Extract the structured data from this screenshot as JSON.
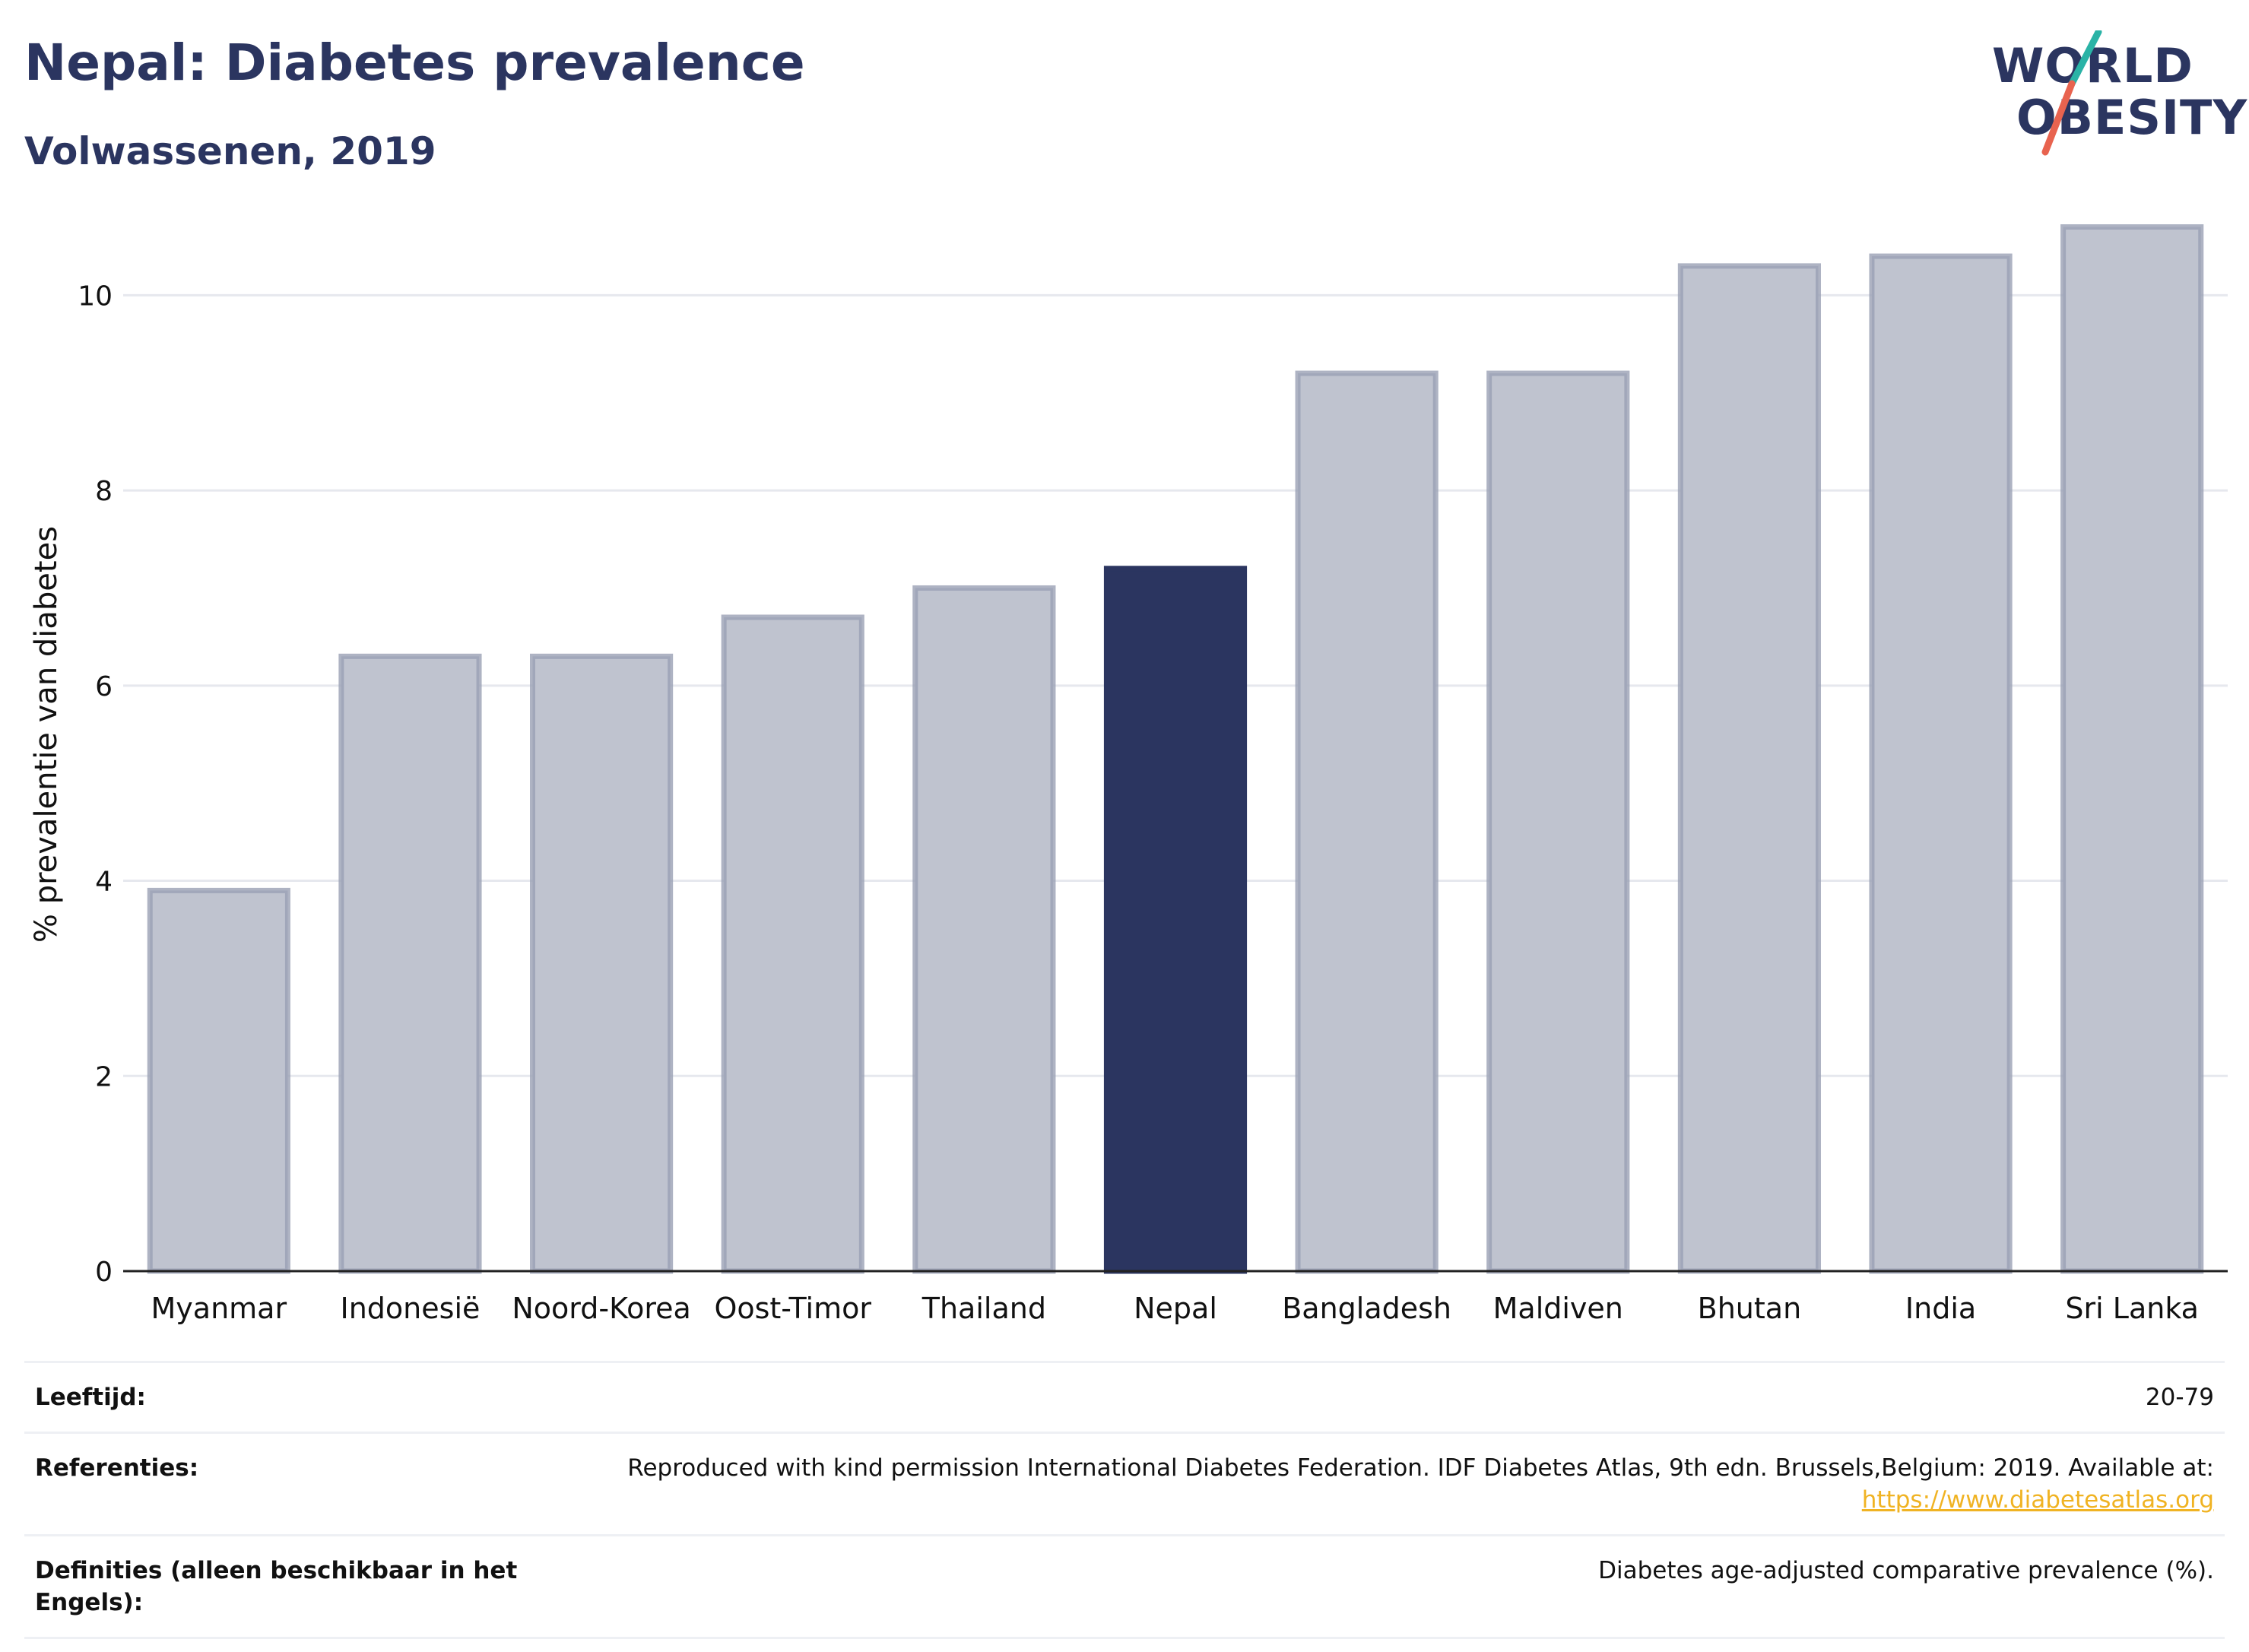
{
  "header": {
    "title": "Nepal: Diabetes prevalence",
    "subtitle": "Volwassenen, 2019"
  },
  "logo": {
    "line1": "WORLD",
    "line2": "OBESITY",
    "accent_colors": [
      "#2ab3a6",
      "#e8634f"
    ]
  },
  "chart_data": {
    "type": "bar",
    "categories": [
      "Myanmar",
      "Indonesië",
      "Noord-Korea",
      "Oost-Timor",
      "Thailand",
      "Nepal",
      "Bangladesh",
      "Maldiven",
      "Bhutan",
      "India",
      "Sri Lanka"
    ],
    "values": [
      3.9,
      6.3,
      6.3,
      6.7,
      7.0,
      7.2,
      9.2,
      9.2,
      10.3,
      10.4,
      10.7
    ],
    "highlight": "Nepal",
    "xlabel": "",
    "ylabel": "% prevalentie van diabetes",
    "ylim": [
      0,
      11
    ],
    "yticks": [
      0,
      2,
      4,
      6,
      8,
      10
    ],
    "grid": true,
    "colors": {
      "bar": "#bfc3cf",
      "bar_border": "#9aa0b4",
      "highlight": "#2b3560"
    }
  },
  "footer": {
    "rows": [
      {
        "label": "Leeftijd:",
        "value": "20-79"
      },
      {
        "label": "Referenties:",
        "value": "Reproduced with kind permission International Diabetes Federation. IDF Diabetes Atlas, 9th edn. Brussels,Belgium: 2019. Available at:",
        "link": "https://www.diabetesatlas.org"
      },
      {
        "label": "Definities (alleen beschikbaar in het Engels):",
        "value": "Diabetes age-adjusted comparative prevalence (%)."
      }
    ]
  }
}
